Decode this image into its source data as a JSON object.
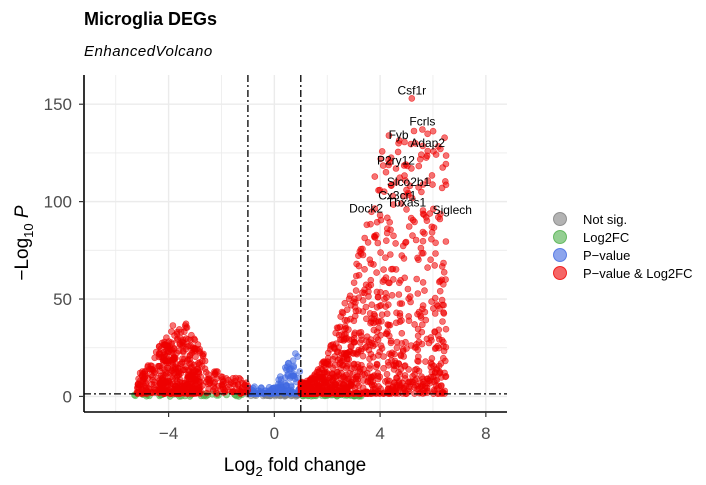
{
  "chart_data": {
    "type": "scatter",
    "title": "Microglia DEGs",
    "subtitle": "EnhancedVolcano",
    "xlabel": {
      "prefix": "Log",
      "sub": "2",
      "suffix": " fold change"
    },
    "ylabel": {
      "prefix": "−Log",
      "sub": "10",
      "suffix": " P"
    },
    "xlim": [
      -7.2,
      8.8
    ],
    "ylim": [
      -8,
      165
    ],
    "xticks": [
      -4,
      0,
      4,
      8
    ],
    "xtick_labels": [
      "−4",
      "0",
      "4",
      "8"
    ],
    "yticks": [
      0,
      50,
      100,
      150
    ],
    "ytick_labels": [
      "0",
      "50",
      "100",
      "150"
    ],
    "fc_cutoff": 1,
    "p_cutoff_y": 1.3,
    "grid": true,
    "legend_position": "right",
    "legend": [
      {
        "key": "ns",
        "label": "Not sig.",
        "color": "#808080"
      },
      {
        "key": "fc",
        "label": "Log2FC",
        "color": "#4daf4a"
      },
      {
        "key": "p",
        "label": "P−value",
        "color": "#4169e1"
      },
      {
        "key": "both",
        "label": "P−value & Log2FC",
        "color": "#ee0000"
      }
    ],
    "labeled_genes": [
      {
        "gene": "Csf1r",
        "x": 5.2,
        "y": 153
      },
      {
        "gene": "Fcrls",
        "x": 5.6,
        "y": 137
      },
      {
        "gene": "Fyb",
        "x": 4.7,
        "y": 130
      },
      {
        "gene": "Adap2",
        "x": 5.8,
        "y": 126
      },
      {
        "gene": "P2ry12",
        "x": 4.6,
        "y": 117
      },
      {
        "gene": "Slco2b1",
        "x": 5.0,
        "y": 106
      },
      {
        "gene": "Cx3cr1",
        "x": 4.8,
        "y": 99
      },
      {
        "gene": "Tbxas1",
        "x": 5.0,
        "y": 96
      },
      {
        "gene": "Dock2",
        "x": 4.0,
        "y": 93
      },
      {
        "gene": "Siglech",
        "x": 6.2,
        "y": 92
      }
    ],
    "point_groups": {
      "note_seed": 7,
      "not_sig": {
        "x_range": [
          -1,
          1
        ],
        "y_max": 1.3,
        "count": 40
      },
      "log2fc": {
        "left_range": [
          -5.3,
          -1
        ],
        "right_range": [
          1,
          3.3
        ],
        "y_max": 1.3,
        "count": 90
      },
      "pvalue": {
        "x_range": [
          -1,
          1
        ],
        "y_max": 28,
        "count": 140
      },
      "both_left": {
        "x_range": [
          -5.2,
          -1
        ],
        "y_max": 41,
        "count": 520
      },
      "both_right": {
        "x_range": [
          1,
          6.5
        ],
        "y_max": 160,
        "count": 1100
      }
    }
  }
}
